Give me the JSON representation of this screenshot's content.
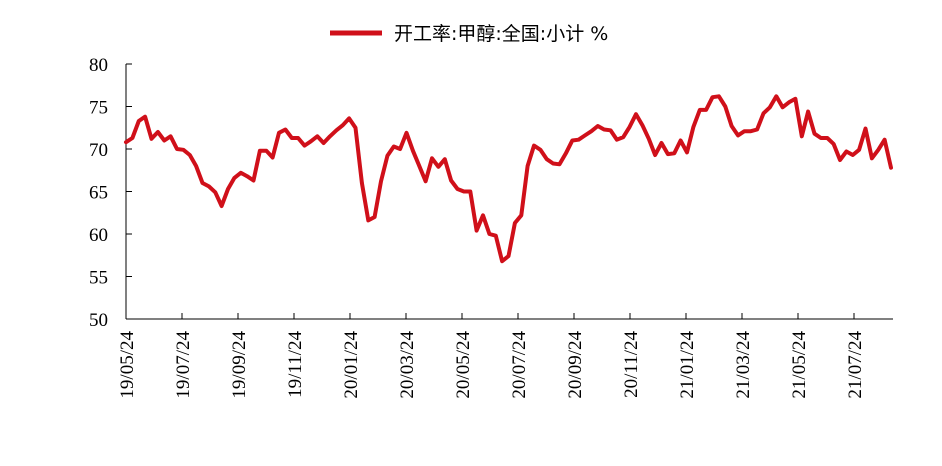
{
  "chart_data": {
    "type": "line",
    "title": "",
    "xlabel": "",
    "ylabel": "",
    "ylim": [
      50,
      80
    ],
    "y_ticks": [
      50,
      55,
      60,
      65,
      70,
      75,
      80
    ],
    "x_tick_labels": [
      "19/05/24",
      "19/07/24",
      "19/09/24",
      "19/11/24",
      "20/01/24",
      "20/03/24",
      "20/05/24",
      "20/07/24",
      "20/09/24",
      "20/11/24",
      "21/01/24",
      "21/03/24",
      "21/05/24",
      "21/07/24"
    ],
    "grid": false,
    "legend_position": "top-center",
    "series": [
      {
        "name": "开工率:甲醇:全国:小计 %",
        "color": "#d0101a",
        "values": [
          70.8,
          71.3,
          73.3,
          73.8,
          71.2,
          72.0,
          71.0,
          71.5,
          70.0,
          69.9,
          69.3,
          68.0,
          66.0,
          65.6,
          64.9,
          63.3,
          65.3,
          66.6,
          67.2,
          66.8,
          66.3,
          69.8,
          69.8,
          69.0,
          71.9,
          72.3,
          71.3,
          71.3,
          70.4,
          70.9,
          71.5,
          70.7,
          71.5,
          72.2,
          72.8,
          73.6,
          72.5,
          66.0,
          61.6,
          62.0,
          66.2,
          69.2,
          70.3,
          70.0,
          71.9,
          69.8,
          68.0,
          66.2,
          68.9,
          67.9,
          68.8,
          66.3,
          65.3,
          65.0,
          65.0,
          60.4,
          62.2,
          60.0,
          59.8,
          56.8,
          57.4,
          61.3,
          62.2,
          68.0,
          70.4,
          69.9,
          68.8,
          68.3,
          68.2,
          69.5,
          71.0,
          71.1,
          71.6,
          72.1,
          72.7,
          72.3,
          72.2,
          71.1,
          71.4,
          72.6,
          74.1,
          72.8,
          71.2,
          69.3,
          70.7,
          69.4,
          69.5,
          71.0,
          69.6,
          72.6,
          74.6,
          74.6,
          76.1,
          76.2,
          75.0,
          72.7,
          71.6,
          72.1,
          72.1,
          72.3,
          74.2,
          74.9,
          76.2,
          74.9,
          75.5,
          75.9,
          71.5,
          74.4,
          71.8,
          71.3,
          71.3,
          70.6,
          68.7,
          69.7,
          69.3,
          69.9,
          72.4,
          68.9,
          69.9,
          71.1,
          67.8
        ]
      }
    ]
  }
}
